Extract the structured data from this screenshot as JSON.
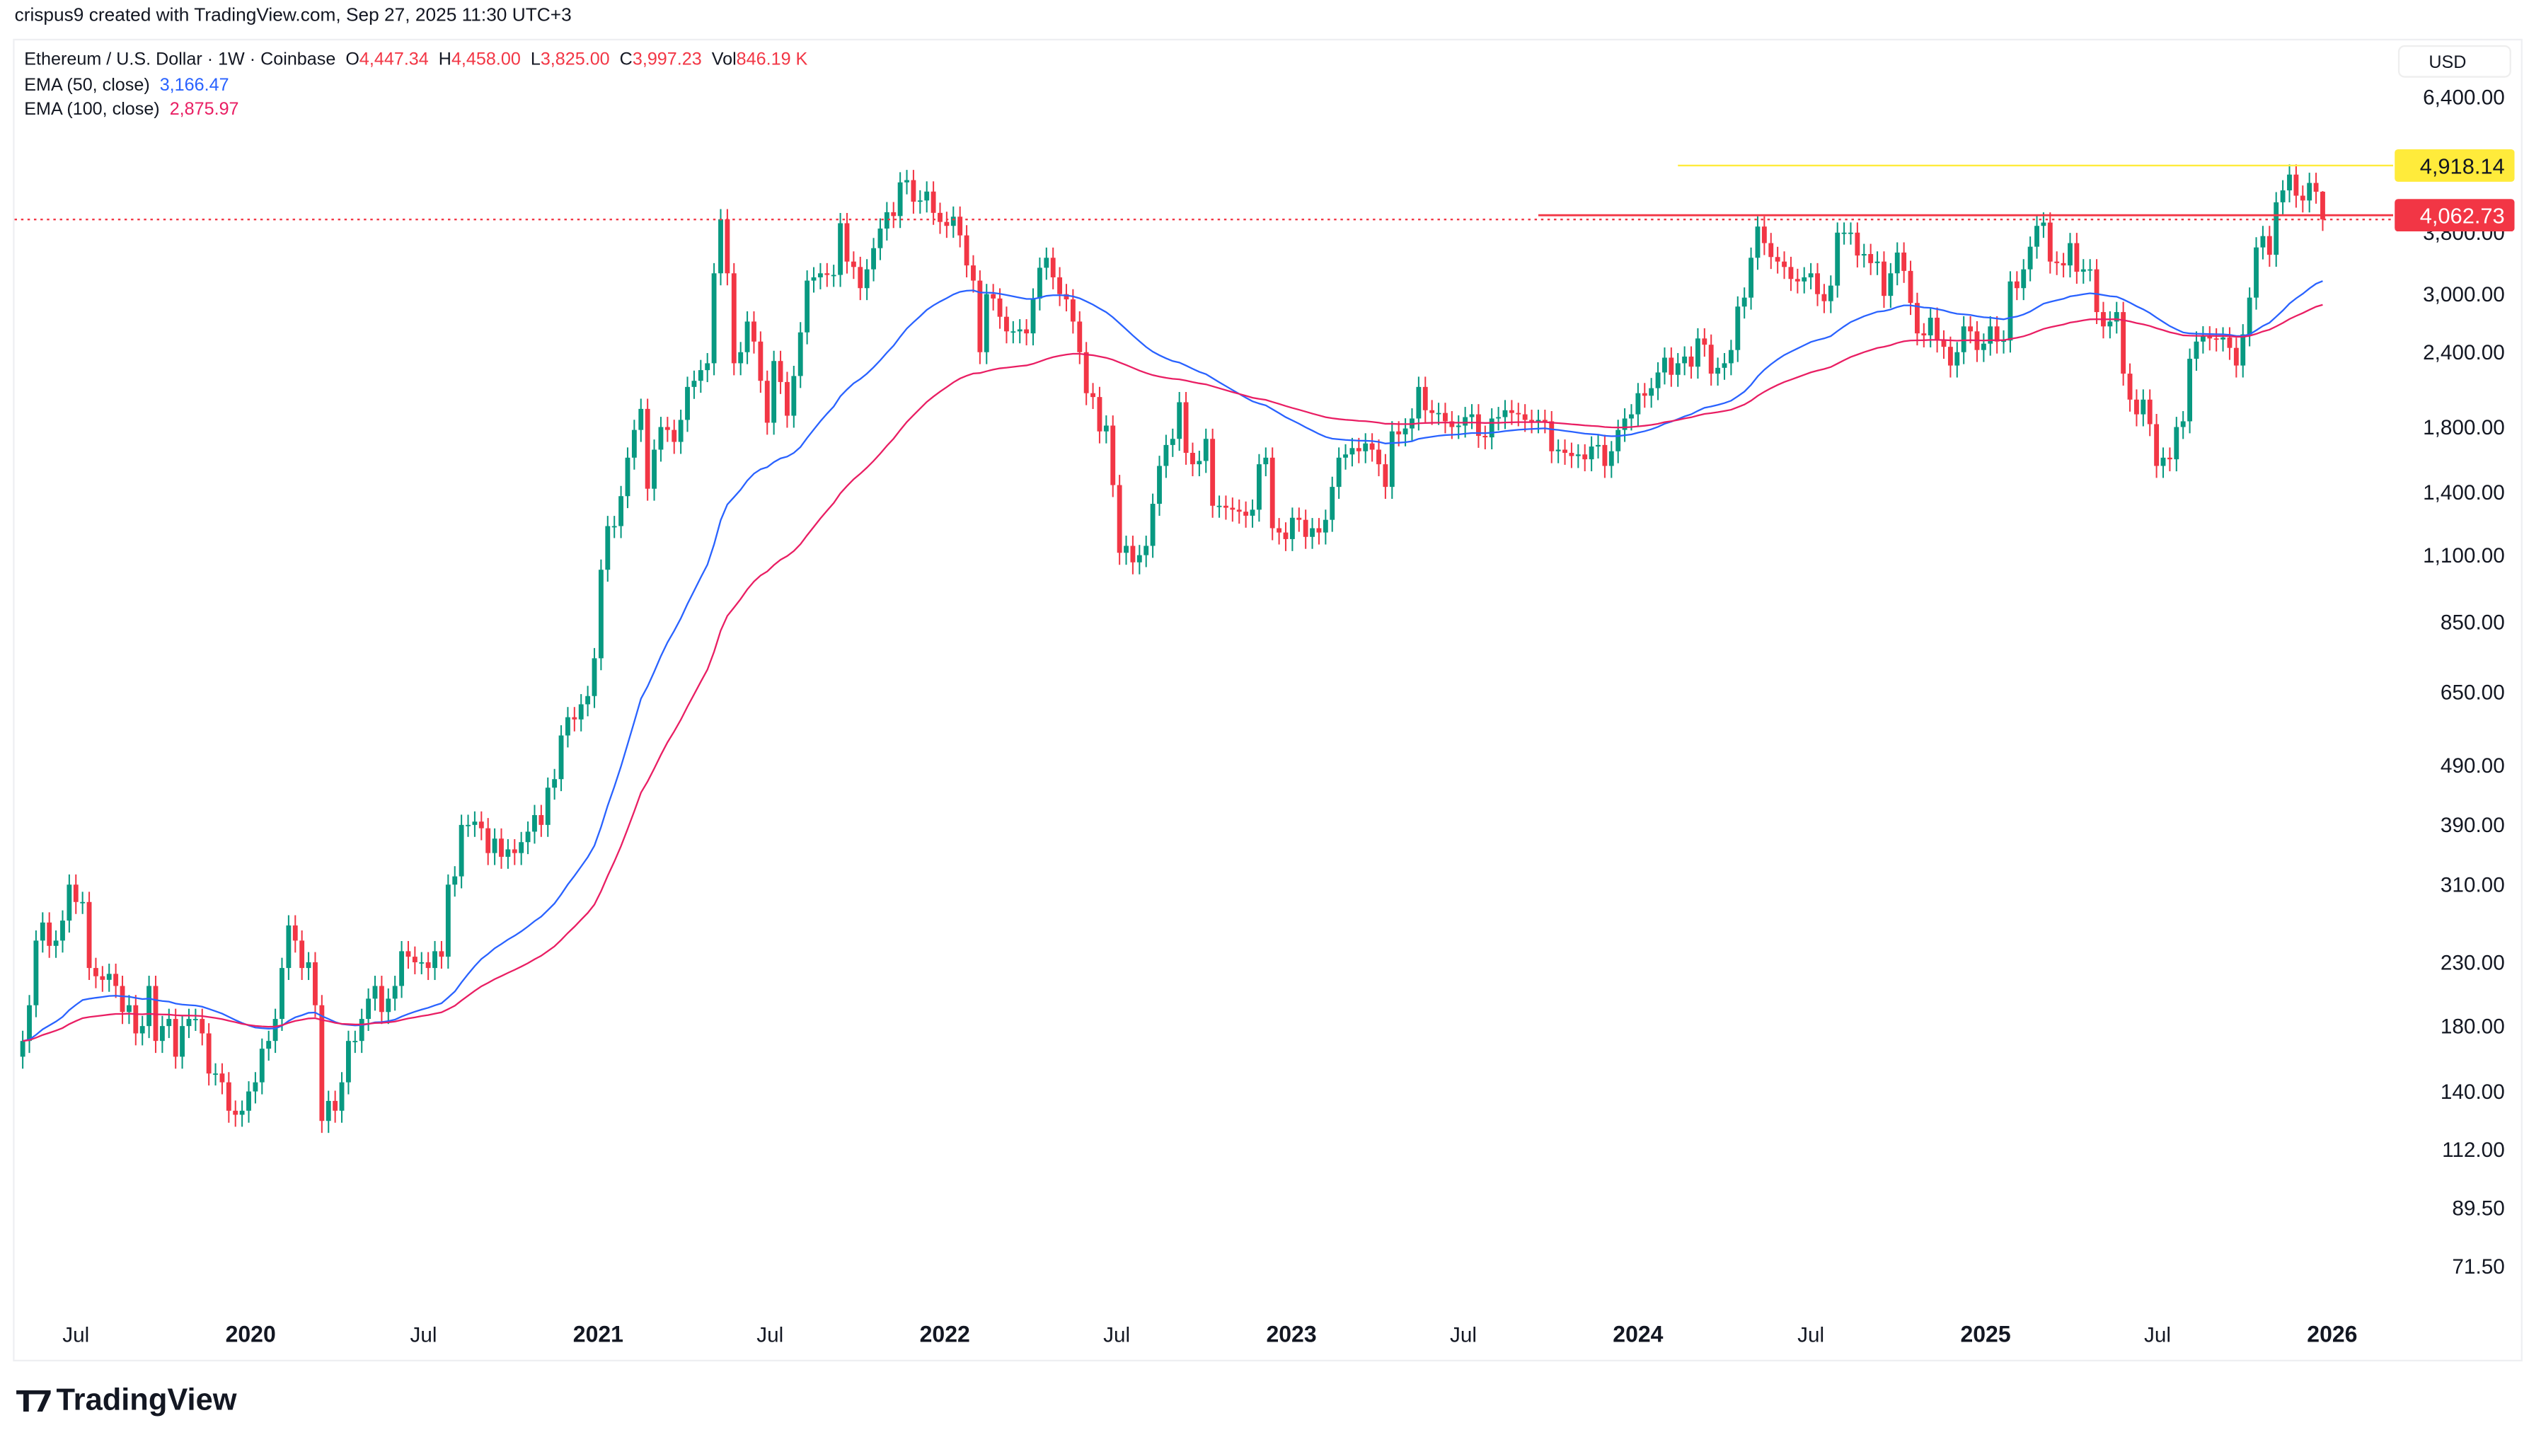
{
  "credit": "crispus9 created with TradingView.com, Sep 27, 2025 11:30 UTC+3",
  "legend": {
    "symbol": "Ethereum / U.S. Dollar · 1W · Coinbase",
    "o_label": "O",
    "o": "4,447.34",
    "h_label": "H",
    "h": "4,458.00",
    "l_label": "L",
    "l": "3,825.00",
    "c_label": "C",
    "c": "3,997.23",
    "vol_label": "Vol",
    "vol": "846.19 K",
    "ema50_label": "EMA (50, close)",
    "ema50": "3,166.47",
    "ema100_label": "EMA (100, close)",
    "ema100": "2,875.97"
  },
  "currency": "USD",
  "logo": "TradingView",
  "colors": {
    "up": "#089981",
    "down": "#f23645",
    "ema50": "#2962ff",
    "ema100": "#e91e63",
    "resistance": "#f23645",
    "high_line": "#ffeb3b"
  },
  "chart_data": {
    "type": "candlestick",
    "scale": "log",
    "ylim": [
      65,
      7200
    ],
    "y_ticks": [
      6400,
      3800,
      3000,
      2400,
      1800,
      1400,
      1100,
      850,
      650,
      490,
      390,
      310,
      230,
      180,
      140,
      112,
      89.5,
      71.5
    ],
    "y_tick_labels": [
      "6,400.00",
      "3,800.00",
      "3,000.00",
      "2,400.00",
      "1,800.00",
      "1,400.00",
      "1,100.00",
      "850.00",
      "650.00",
      "490.00",
      "390.00",
      "310.00",
      "230.00",
      "180.00",
      "140.00",
      "112.00",
      "89.50",
      "71.50"
    ],
    "x_ticks": [
      {
        "date": "2019-07-01",
        "label": "Jul"
      },
      {
        "date": "2020-01-01",
        "label": "2020"
      },
      {
        "date": "2020-07-01",
        "label": "Jul"
      },
      {
        "date": "2021-01-01",
        "label": "2021"
      },
      {
        "date": "2021-07-01",
        "label": "Jul"
      },
      {
        "date": "2022-01-01",
        "label": "2022"
      },
      {
        "date": "2022-07-01",
        "label": "Jul"
      },
      {
        "date": "2023-01-01",
        "label": "2023"
      },
      {
        "date": "2023-07-01",
        "label": "Jul"
      },
      {
        "date": "2024-01-01",
        "label": "2024"
      },
      {
        "date": "2024-07-01",
        "label": "Jul"
      },
      {
        "date": "2025-01-01",
        "label": "2025"
      },
      {
        "date": "2025-07-01",
        "label": "Jul"
      },
      {
        "date": "2026-01-01",
        "label": "2026"
      }
    ],
    "first_week": "2019-05-06",
    "first_open": 160,
    "weekly_close": [
      170,
      195,
      250,
      268,
      245,
      250,
      270,
      310,
      290,
      290,
      225,
      218,
      215,
      220,
      210,
      190,
      195,
      175,
      180,
      210,
      170,
      180,
      185,
      160,
      180,
      185,
      185,
      175,
      150,
      150,
      145,
      130,
      128,
      130,
      140,
      145,
      165,
      170,
      185,
      225,
      265,
      250,
      225,
      230,
      195,
      125,
      135,
      130,
      145,
      170,
      170,
      185,
      200,
      210,
      190,
      200,
      210,
      240,
      235,
      230,
      230,
      225,
      240,
      235,
      310,
      320,
      390,
      390,
      395,
      385,
      350,
      370,
      345,
      355,
      350,
      365,
      380,
      405,
      390,
      450,
      465,
      550,
      590,
      585,
      620,
      640,
      740,
      1040,
      1230,
      1230,
      1380,
      1600,
      1780,
      1930,
      1420,
      1650,
      1800,
      1780,
      1700,
      1850,
      2100,
      2150,
      2240,
      2300,
      3250,
      4000,
      3250,
      2300,
      2400,
      2700,
      2500,
      2150,
      1830,
      2320,
      2140,
      1880,
      2190,
      2590,
      3160,
      3200,
      3250,
      3230,
      3230,
      3940,
      3400,
      3330,
      3070,
      3300,
      3580,
      3860,
      4110,
      4050,
      4610,
      4650,
      4280,
      4300,
      4450,
      4100,
      3960,
      3900,
      4040,
      3760,
      3350,
      3160,
      2400,
      3000,
      2950,
      2750,
      2600,
      2600,
      2620,
      2580,
      2950,
      3320,
      3450,
      3200,
      3000,
      2940,
      2700,
      2400,
      2050,
      2020,
      1770,
      1810,
      1440,
      1110,
      1140,
      1070,
      1100,
      1140,
      1340,
      1550,
      1680,
      1720,
      1980,
      1630,
      1560,
      1580,
      1720,
      1330,
      1330,
      1320,
      1310,
      1300,
      1280,
      1310,
      1560,
      1600,
      1220,
      1200,
      1170,
      1270,
      1260,
      1180,
      1220,
      1200,
      1260,
      1430,
      1600,
      1620,
      1660,
      1640,
      1690,
      1650,
      1560,
      1430,
      1770,
      1750,
      1790,
      1860,
      2100,
      1920,
      1900,
      1900,
      1840,
      1800,
      1810,
      1870,
      1890,
      1740,
      1730,
      1860,
      1870,
      1920,
      1900,
      1890,
      1850,
      1840,
      1850,
      1840,
      1640,
      1650,
      1630,
      1610,
      1620,
      1590,
      1670,
      1680,
      1550,
      1640,
      1780,
      1860,
      1890,
      2050,
      2030,
      2090,
      2220,
      2350,
      2200,
      2300,
      2360,
      2270,
      2530,
      2470,
      2210,
      2260,
      2300,
      2420,
      2860,
      2960,
      3450,
      3890,
      3650,
      3460,
      3400,
      3330,
      3180,
      3150,
      3200,
      3250,
      3000,
      2920,
      3100,
      3800,
      3800,
      3800,
      3480,
      3500,
      3380,
      3400,
      2980,
      3250,
      3520,
      3280,
      2900,
      2580,
      2560,
      2740,
      2510,
      2450,
      2280,
      2400,
      2650,
      2600,
      2420,
      2480,
      2650,
      2500,
      2510,
      3150,
      3070,
      3300,
      3600,
      3900,
      3950,
      3400,
      3380,
      3350,
      3650,
      3270,
      3300,
      3300,
      2800,
      2650,
      2700,
      2800,
      2210,
      2000,
      1890,
      2000,
      1820,
      1550,
      1600,
      1590,
      1800,
      1840,
      2340,
      2500,
      2550,
      2530,
      2520,
      2540,
      2440,
      2280,
      2570,
      2960,
      3590,
      3750,
      3490,
      4270,
      4470,
      4750,
      4380,
      4300,
      4600,
      4447.34,
      3997.23
    ],
    "last_candle": {
      "open": 4447.34,
      "high": 4458.0,
      "low": 3825.0,
      "close": 3997.23
    },
    "indicators": [
      {
        "name": "EMA (50, close)",
        "period": 50
      },
      {
        "name": "EMA (100, close)",
        "period": 100
      }
    ],
    "levels": [
      {
        "price": 4918.14,
        "label": "4,918.14",
        "from": "2024-02-12",
        "style": "solid",
        "color": "#ffeb3b"
      },
      {
        "price": 4062.73,
        "label": "4,062.73",
        "from": "2023-09-18",
        "style": "solid",
        "color": "#f23645"
      }
    ],
    "last_price": 3997.23
  }
}
